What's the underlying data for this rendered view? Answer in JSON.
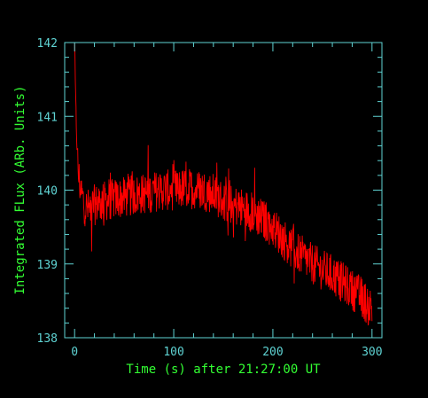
{
  "colors": {
    "background": "#000000",
    "axes": "#5fd3d3",
    "labels": "#33ff33",
    "series": "#ff0000"
  },
  "chart_data": {
    "type": "line",
    "title": "",
    "xlabel": "Time (s) after 21:27:00 UT",
    "ylabel": "Integrated FLux (ARb. Units)",
    "xlim": [
      -10,
      310
    ],
    "ylim": [
      138,
      142
    ],
    "xticks": [
      0,
      100,
      200,
      300
    ],
    "xtick_labels": [
      "0",
      "100",
      "200",
      "300"
    ],
    "yticks": [
      138,
      139,
      140,
      141,
      142
    ],
    "ytick_labels": [
      "138",
      "139",
      "140",
      "141",
      "142"
    ],
    "grid": false,
    "legend": "none",
    "series": [
      {
        "x": [
          0,
          1,
          2,
          3,
          4,
          6,
          8,
          10,
          12,
          15,
          20,
          25,
          30,
          40,
          50,
          60,
          70,
          80,
          90,
          100,
          110,
          120,
          130,
          140,
          150,
          160,
          170,
          180,
          190,
          200,
          210,
          220,
          230,
          240,
          250,
          260,
          270,
          280,
          290,
          295,
          300
        ],
        "y": [
          142.0,
          141.2,
          140.8,
          140.4,
          140.2,
          140.0,
          139.9,
          139.8,
          139.75,
          139.75,
          139.8,
          139.82,
          139.85,
          139.88,
          139.9,
          139.93,
          139.95,
          139.98,
          140.0,
          140.0,
          140.02,
          140.02,
          140.0,
          139.95,
          139.85,
          139.8,
          139.75,
          139.7,
          139.6,
          139.5,
          139.35,
          139.2,
          139.1,
          139.0,
          138.92,
          138.85,
          138.75,
          138.65,
          138.55,
          138.45,
          138.4
        ],
        "noise_amplitude": 0.28
      }
    ]
  }
}
